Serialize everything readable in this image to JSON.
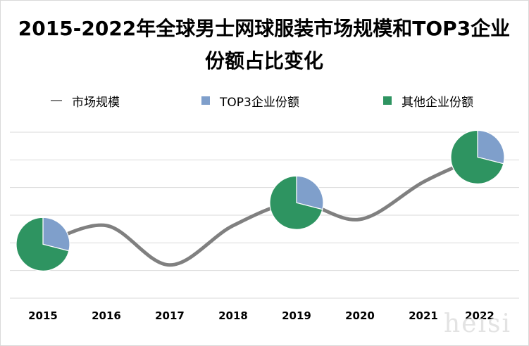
{
  "chart_data": {
    "type": "line",
    "title": "2015-2022年全球男士网球服装市场规模和TOP3企业份额占比变化",
    "categories": [
      "2015",
      "2016",
      "2017",
      "2018",
      "2019",
      "2020",
      "2021",
      "2022"
    ],
    "series": [
      {
        "name": "市场规模",
        "values": [
          1.0,
          1.9,
          0.0,
          1.9,
          3.0,
          2.2,
          4.0,
          5.2
        ],
        "color": "#808080"
      }
    ],
    "ylim": [
      -1.6,
      6.4
    ],
    "grid": true,
    "legend": "top",
    "pies": [
      {
        "category": "2015",
        "slices": [
          {
            "name": "TOP3企业份额",
            "value": 0.29,
            "color": "#7f9fcb"
          },
          {
            "name": "其他企业份额",
            "value": 0.71,
            "color": "#2e9461"
          }
        ]
      },
      {
        "category": "2019",
        "slices": [
          {
            "name": "TOP3企业份额",
            "value": 0.29,
            "color": "#7f9fcb"
          },
          {
            "name": "其他企业份额",
            "value": 0.71,
            "color": "#2e9461"
          }
        ]
      },
      {
        "category": "2022",
        "slices": [
          {
            "name": "TOP3企业份额",
            "value": 0.29,
            "color": "#7f9fcb"
          },
          {
            "name": "其他企业份额",
            "value": 0.71,
            "color": "#2e9461"
          }
        ]
      }
    ]
  },
  "legend": {
    "items": [
      {
        "label": "市场规模",
        "color": "#808080"
      },
      {
        "label": "TOP3企业份额",
        "color": "#7f9fcb"
      },
      {
        "label": "其他企业份额",
        "color": "#2e9461"
      }
    ]
  },
  "watermark": "heisi"
}
